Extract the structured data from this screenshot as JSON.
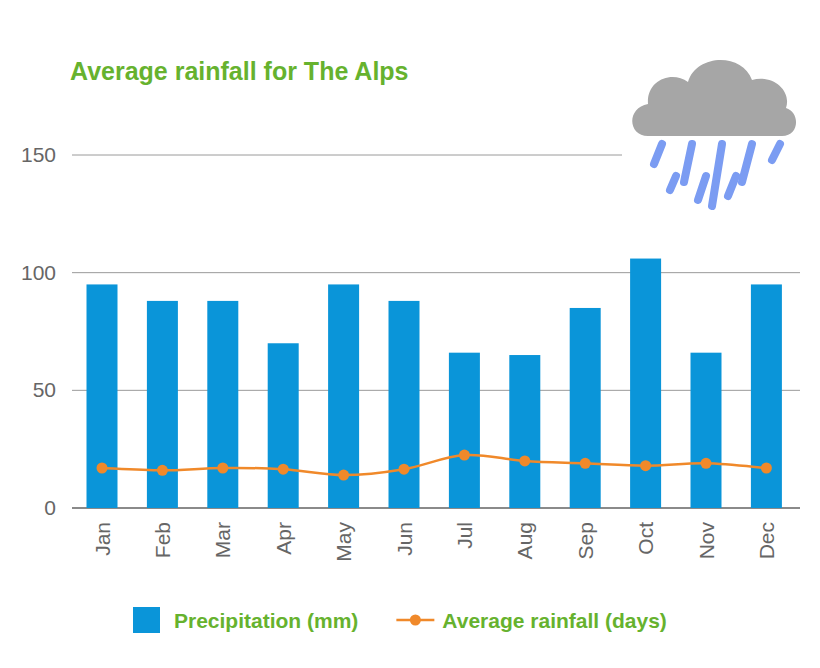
{
  "chart_data": {
    "type": "bar",
    "title": "Average rainfall for The Alps",
    "categories": [
      "Jan",
      "Feb",
      "Mar",
      "Apr",
      "May",
      "Jun",
      "Jul",
      "Aug",
      "Sep",
      "Oct",
      "Nov",
      "Dec"
    ],
    "series": [
      {
        "name": "Precipitation (mm)",
        "type": "bar",
        "color": "#0a95d9",
        "values": [
          95,
          88,
          88,
          70,
          95,
          88,
          66,
          65,
          85,
          106,
          66,
          95
        ]
      },
      {
        "name": "Average rainfall (days)",
        "type": "line",
        "color": "#f0892a",
        "marker": "circle",
        "values": [
          17,
          16,
          17,
          16.5,
          14,
          16.5,
          22.5,
          20,
          19,
          18,
          19,
          17
        ]
      }
    ],
    "ylim": [
      0,
      150
    ],
    "yticks": [
      0,
      50,
      100,
      150
    ],
    "grid": true,
    "legend": "bottom"
  }
}
